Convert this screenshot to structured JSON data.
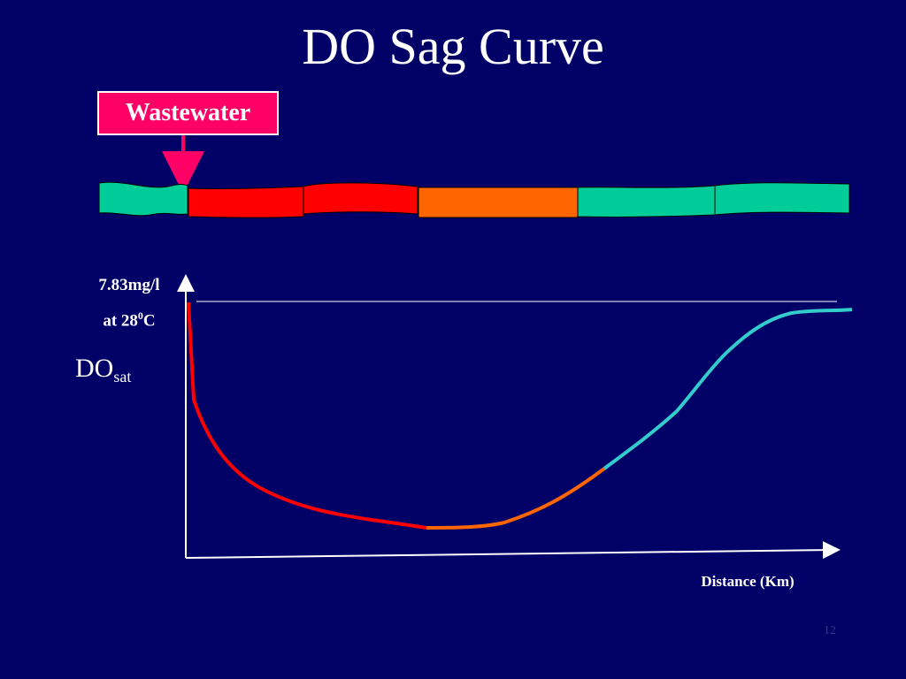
{
  "title": "DO Sag Curve",
  "wastewater_label": "Wastewater",
  "saturation": {
    "value_line1": "7.83mg/l",
    "value_line2_prefix": "at 28",
    "value_line2_sup": "0",
    "value_line2_suffix": "C"
  },
  "y_label": {
    "main": "DO",
    "sub": "sat"
  },
  "x_label": "Distance (Km)",
  "slide_number": "12",
  "colors": {
    "background": "#000066",
    "clean_water": "#00cc99",
    "polluted": "#ff0000",
    "recovering": "#ff6600",
    "recovered_curve": "#33cccc",
    "wastewater_box": "#ff0066",
    "axis": "#ffffff"
  }
}
